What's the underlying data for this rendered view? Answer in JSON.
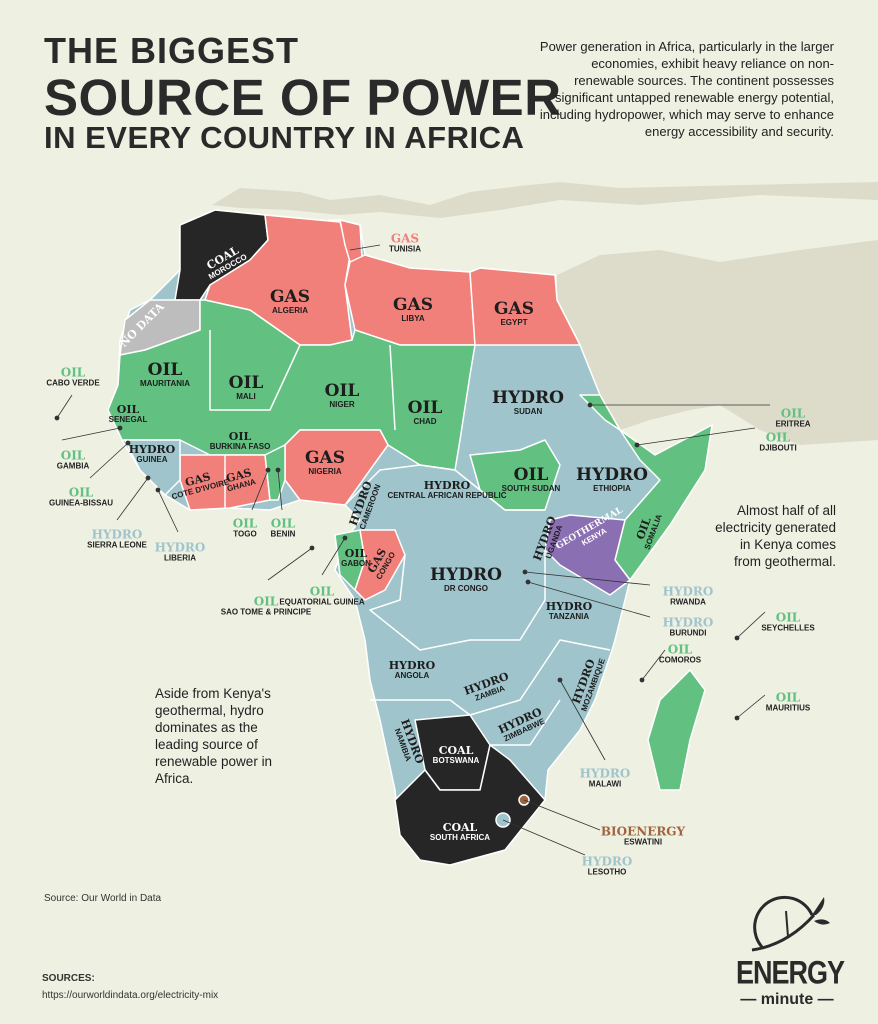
{
  "title": {
    "line1": "THE BIGGEST",
    "line2": "SOURCE OF POWER",
    "line3": "IN EVERY COUNTRY IN AFRICA"
  },
  "intro": "Power generation in Africa, particularly in the larger economies, exhibit heavy reliance on non-renewable sources. The continent possesses significant untapped renewable energy potential, including hydropower, which may serve to enhance energy accessibility and security.",
  "notes": {
    "kenya": "Almost half of all electricity generated in Kenya comes from geothermal.",
    "hydro": "Aside from Kenya's geothermal, hydro dominates as the leading source of renewable power in Africa."
  },
  "colors": {
    "gas": "#f1807a",
    "oil": "#62c080",
    "hydro": "#9fc4cc",
    "coal": "#262626",
    "geothermal": "#8b6fb3",
    "bioenergy": "#a0643c",
    "no_data": "#bdbdbd",
    "background": "#eef0e2"
  },
  "labels": [
    {
      "source": "COAL",
      "country": "MOROCCO",
      "type": "coal"
    },
    {
      "source": "NO DATA",
      "country": "",
      "type": "no_data"
    },
    {
      "source": "GAS",
      "country": "ALGERIA",
      "type": "gas"
    },
    {
      "source": "GAS",
      "country": "TUNISIA",
      "type": "gas"
    },
    {
      "source": "GAS",
      "country": "LIBYA",
      "type": "gas"
    },
    {
      "source": "GAS",
      "country": "EGYPT",
      "type": "gas"
    },
    {
      "source": "OIL",
      "country": "MAURITANIA",
      "type": "oil"
    },
    {
      "source": "OIL",
      "country": "MALI",
      "type": "oil"
    },
    {
      "source": "OIL",
      "country": "NIGER",
      "type": "oil"
    },
    {
      "source": "OIL",
      "country": "CHAD",
      "type": "oil"
    },
    {
      "source": "HYDRO",
      "country": "SUDAN",
      "type": "hydro"
    },
    {
      "source": "OIL",
      "country": "SENEGAL",
      "type": "oil"
    },
    {
      "source": "HYDRO",
      "country": "GUINEA",
      "type": "hydro"
    },
    {
      "source": "OIL",
      "country": "BURKINA FASO",
      "type": "oil"
    },
    {
      "source": "GAS",
      "country": "COTE D'IVOIRE",
      "type": "gas"
    },
    {
      "source": "GAS",
      "country": "GHANA",
      "type": "gas"
    },
    {
      "source": "GAS",
      "country": "NIGERIA",
      "type": "gas"
    },
    {
      "source": "HYDRO",
      "country": "CAMEROON",
      "type": "hydro"
    },
    {
      "source": "HYDRO",
      "country": "CENTRAL AFRICAN REPUBLIC",
      "type": "hydro"
    },
    {
      "source": "OIL",
      "country": "SOUTH SUDAN",
      "type": "oil",
      "source2": "SUDAN"
    },
    {
      "source": "HYDRO",
      "country": "ETHIOPIA",
      "type": "hydro"
    },
    {
      "source": "OIL",
      "country": "SOMALIA",
      "type": "oil"
    },
    {
      "source": "GEOTHERMAL",
      "country": "KENYA",
      "type": "geothermal"
    },
    {
      "source": "HYDRO",
      "country": "UGANDA",
      "type": "hydro"
    },
    {
      "source": "OIL",
      "country": "GABON",
      "type": "oil"
    },
    {
      "source": "GAS",
      "country": "CONGO",
      "type": "gas"
    },
    {
      "source": "HYDRO",
      "country": "DR CONGO",
      "type": "hydro"
    },
    {
      "source": "HYDRO",
      "country": "TANZANIA",
      "type": "hydro"
    },
    {
      "source": "HYDRO",
      "country": "ANGOLA",
      "type": "hydro"
    },
    {
      "source": "HYDRO",
      "country": "ZAMBIA",
      "type": "hydro"
    },
    {
      "source": "HYDRO",
      "country": "MOZAMBIQUE",
      "type": "hydro"
    },
    {
      "source": "HYDRO",
      "country": "ZIMBABWE",
      "type": "hydro"
    },
    {
      "source": "HYDRO",
      "country": "NAMIBIA",
      "type": "hydro"
    },
    {
      "source": "COAL",
      "country": "BOTSWANA",
      "type": "coal"
    },
    {
      "source": "COAL",
      "country": "SOUTH AFRICA",
      "type": "coal"
    },
    {
      "source": "OIL",
      "country": "CABO VERDE",
      "type": "oil"
    },
    {
      "source": "OIL",
      "country": "GAMBIA",
      "type": "oil"
    },
    {
      "source": "OIL",
      "country": "GUINEA-BISSAU",
      "type": "oil"
    },
    {
      "source": "HYDRO",
      "country": "SIERRA LEONE",
      "type": "hydro"
    },
    {
      "source": "HYDRO",
      "country": "LIBERIA",
      "type": "hydro"
    },
    {
      "source": "OIL",
      "country": "TOGO",
      "type": "oil"
    },
    {
      "source": "OIL",
      "country": "BENIN",
      "type": "oil"
    },
    {
      "source": "OIL",
      "country": "SAO TOME & PRINCIPE",
      "type": "oil"
    },
    {
      "source": "OIL",
      "country": "EQUATORIAL GUINEA",
      "type": "oil"
    },
    {
      "source": "OIL",
      "country": "ERITREA",
      "type": "oil"
    },
    {
      "source": "OIL",
      "country": "DJIBOUTI",
      "type": "oil"
    },
    {
      "source": "HYDRO",
      "country": "RWANDA",
      "type": "hydro"
    },
    {
      "source": "HYDRO",
      "country": "BURUNDI",
      "type": "hydro"
    },
    {
      "source": "OIL",
      "country": "SEYCHELLES",
      "type": "oil"
    },
    {
      "source": "OIL",
      "country": "COMOROS",
      "type": "oil"
    },
    {
      "source": "OIL",
      "country": "MAURITIUS",
      "type": "oil"
    },
    {
      "source": "HYDRO",
      "country": "MALAWI",
      "type": "hydro"
    },
    {
      "source": "BIOENERGY",
      "country": "ESWATINI",
      "type": "bioenergy"
    },
    {
      "source": "HYDRO",
      "country": "LESOTHO",
      "type": "hydro"
    }
  ],
  "footer": {
    "source_note": "Source: Our World in Data",
    "sources_heading": "SOURCES:",
    "sources_url": "https://ourworldindata.org/electricity-mix"
  },
  "logo": {
    "word1": "ENERGY",
    "word2": "— minute —"
  }
}
